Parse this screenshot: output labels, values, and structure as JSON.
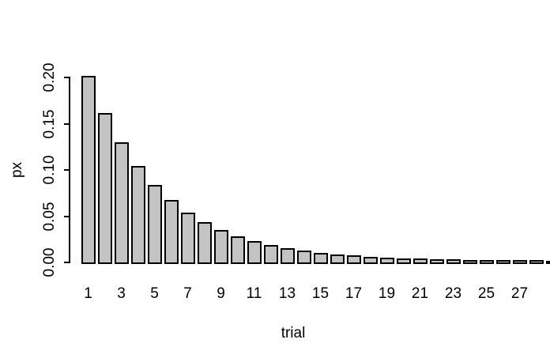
{
  "chart_data": {
    "type": "bar",
    "title": "",
    "xlabel": "trial",
    "ylabel": "px",
    "x": [
      1,
      2,
      3,
      4,
      5,
      6,
      7,
      8,
      9,
      10,
      11,
      12,
      13,
      14,
      15,
      16,
      17,
      18,
      19,
      20,
      21,
      22,
      23,
      24,
      25,
      26,
      27,
      28,
      29
    ],
    "values": [
      0.2,
      0.16,
      0.128,
      0.1024,
      0.08192,
      0.065536,
      0.0524288,
      0.04194304,
      0.03355443,
      0.02684355,
      0.02147484,
      0.01717987,
      0.0137439,
      0.01099512,
      0.00879609,
      0.00703687,
      0.0056295,
      0.0045036,
      0.00360288,
      0.0028823,
      0.00230584,
      0.00184467,
      0.00147574,
      0.00118059,
      0.00094447,
      0.00075558,
      0.00060446,
      0.00048357,
      0.00038686
    ],
    "x_tick_labels": [
      "1",
      "3",
      "5",
      "7",
      "9",
      "11",
      "13",
      "15",
      "17",
      "19",
      "21",
      "23",
      "25",
      "27"
    ],
    "x_tick_positions": [
      1,
      3,
      5,
      7,
      9,
      11,
      13,
      15,
      17,
      19,
      21,
      23,
      25,
      27
    ],
    "y_ticks": [
      0.0,
      0.05,
      0.1,
      0.15,
      0.2
    ],
    "y_tick_labels": [
      "0.00",
      "0.05",
      "0.10",
      "0.15",
      "0.20"
    ],
    "ylim": [
      0,
      0.2
    ],
    "grid": false,
    "legend": null,
    "bar_fill_color": "#c3c3c3",
    "bar_border_color": "#000000",
    "axis_color": "#000000",
    "background_color": "#ffffff",
    "note": "geometric distribution p=0.2; 29th bar clipped at right edge"
  }
}
